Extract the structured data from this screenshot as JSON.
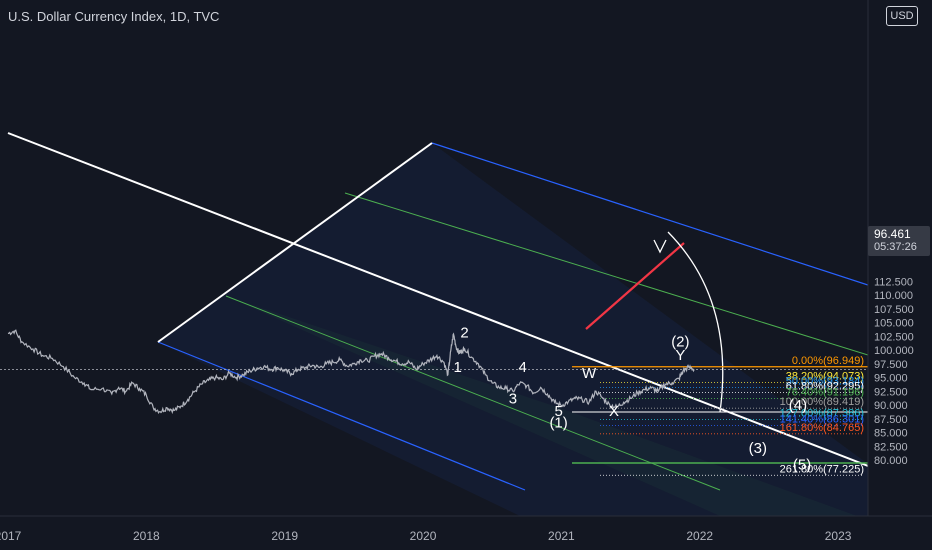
{
  "header": {
    "title": "U.S. Dollar Currency Index, 1D, TVC",
    "currency_label": "USD"
  },
  "last_price": {
    "value": "96.461",
    "countdown": "05:37:26"
  },
  "colors": {
    "background": "#131722",
    "price": "#b2b5be",
    "white_line": "#ffffff",
    "blue_line": "#2962ff",
    "green_line": "#4caf50",
    "red_line": "#f23645",
    "orange_line": "#ff9800"
  },
  "chart_data": {
    "type": "line",
    "title": "U.S. Dollar Currency Index, 1D, TVC",
    "x_ticks": [
      "2017",
      "2018",
      "2019",
      "2020",
      "2021",
      "2022",
      "2023"
    ],
    "y_ticks": [
      "80.000",
      "82.500",
      "85.000",
      "87.500",
      "90.000",
      "92.500",
      "95.000",
      "97.500",
      "100.000",
      "102.500",
      "105.000",
      "107.500",
      "110.000",
      "112.500"
    ],
    "ylim": [
      78,
      113
    ],
    "xlim": [
      2017.0,
      2023.65
    ],
    "series": [
      {
        "x": [
          2017.0,
          2017.05,
          2017.1,
          2017.18,
          2017.25,
          2017.32,
          2017.4,
          2017.48,
          2017.55,
          2017.6,
          2017.68,
          2017.75,
          2017.8,
          2017.85,
          2017.9,
          2017.95,
          2018.0,
          2018.05,
          2018.1,
          2018.15,
          2018.2,
          2018.25,
          2018.3,
          2018.35,
          2018.4,
          2018.45,
          2018.5,
          2018.55,
          2018.6,
          2018.65,
          2018.7,
          2018.75,
          2018.8,
          2018.85,
          2018.9,
          2018.95,
          2019.0,
          2019.05,
          2019.1,
          2019.15,
          2019.2,
          2019.25,
          2019.3,
          2019.35,
          2019.4,
          2019.45,
          2019.5,
          2019.55,
          2019.6,
          2019.65,
          2019.7,
          2019.75,
          2019.8,
          2019.85,
          2019.9,
          2019.95,
          2020.0,
          2020.05,
          2020.1,
          2020.15,
          2020.18,
          2020.2,
          2020.22,
          2020.24,
          2020.26,
          2020.28,
          2020.3,
          2020.35,
          2020.4,
          2020.45,
          2020.5,
          2020.55,
          2020.6,
          2020.65,
          2020.7,
          2020.75,
          2020.8,
          2020.85,
          2020.9,
          2020.95,
          2021.0,
          2021.05,
          2021.1,
          2021.15,
          2021.2,
          2021.25,
          2021.3,
          2021.35,
          2021.4,
          2021.45,
          2021.5,
          2021.55,
          2021.6,
          2021.65,
          2021.7,
          2021.75,
          2021.8,
          2021.85,
          2021.88,
          2021.92,
          2021.96
        ],
        "values": [
          103.0,
          103.5,
          101.5,
          100.2,
          99.0,
          98.5,
          97.0,
          95.0,
          94.0,
          92.8,
          93.0,
          92.0,
          93.2,
          92.5,
          94.0,
          93.0,
          91.8,
          89.5,
          88.8,
          89.5,
          89.0,
          89.8,
          91.0,
          92.5,
          93.8,
          94.5,
          95.0,
          94.6,
          95.8,
          95.0,
          95.5,
          96.2,
          96.7,
          97.0,
          96.5,
          96.8,
          96.2,
          95.7,
          96.5,
          96.8,
          97.2,
          96.8,
          97.5,
          97.8,
          98.2,
          97.1,
          97.5,
          98.2,
          98.0,
          98.9,
          99.3,
          98.6,
          98.0,
          97.5,
          97.8,
          96.5,
          97.5,
          98.2,
          99.0,
          97.8,
          95.5,
          99.8,
          102.9,
          100.5,
          99.5,
          99.8,
          100.3,
          98.7,
          97.5,
          95.5,
          94.0,
          93.2,
          93.0,
          92.5,
          94.0,
          93.5,
          92.2,
          93.2,
          92.0,
          90.5,
          89.9,
          90.6,
          91.2,
          91.0,
          90.5,
          92.5,
          91.2,
          90.0,
          89.6,
          90.5,
          91.2,
          92.2,
          92.8,
          93.1,
          92.5,
          93.8,
          94.0,
          94.8,
          96.2,
          96.9,
          96.461
        ]
      }
    ],
    "fib_levels": [
      {
        "label": "0.00%(96.949)",
        "value": 96.949
      },
      {
        "label": "38.20%(94.073)",
        "value": 94.073
      },
      {
        "label": "50.00%(93.184)",
        "value": 93.184
      },
      {
        "label": "61.80%(92.295)",
        "value": 92.295
      },
      {
        "label": "76.40%(91.196)",
        "value": 91.196
      },
      {
        "label": "100.00%(89.419)",
        "value": 89.419
      },
      {
        "label": "127.00%(87.386)",
        "value": 87.386
      },
      {
        "label": "141.40%(86.301)",
        "value": 86.301
      },
      {
        "label": "161.80%(84.765)",
        "value": 84.765
      },
      {
        "label": "261.80%(77.225)",
        "value": 77.225
      }
    ],
    "wave_labels": [
      {
        "text": "1",
        "x": 2020.25,
        "y": 96.0
      },
      {
        "text": "2",
        "x": 2020.3,
        "y": 102.3
      },
      {
        "text": "3",
        "x": 2020.65,
        "y": 90.3
      },
      {
        "text": "4",
        "x": 2020.72,
        "y": 96.0
      },
      {
        "text": "5",
        "x": 2020.98,
        "y": 88.0
      },
      {
        "text": "(1)",
        "x": 2020.98,
        "y": 85.9
      },
      {
        "text": "W",
        "x": 2021.2,
        "y": 94.9
      },
      {
        "text": "X",
        "x": 2021.38,
        "y": 88.0
      },
      {
        "text": "Y",
        "x": 2021.86,
        "y": 98.2
      },
      {
        "text": "(2)",
        "x": 2021.86,
        "y": 100.6
      },
      {
        "text": "(3)",
        "x": 2022.42,
        "y": 81.3
      },
      {
        "text": "(4)",
        "x": 2022.71,
        "y": 89.1
      },
      {
        "text": "(5)",
        "x": 2022.74,
        "y": 78.3
      }
    ]
  }
}
